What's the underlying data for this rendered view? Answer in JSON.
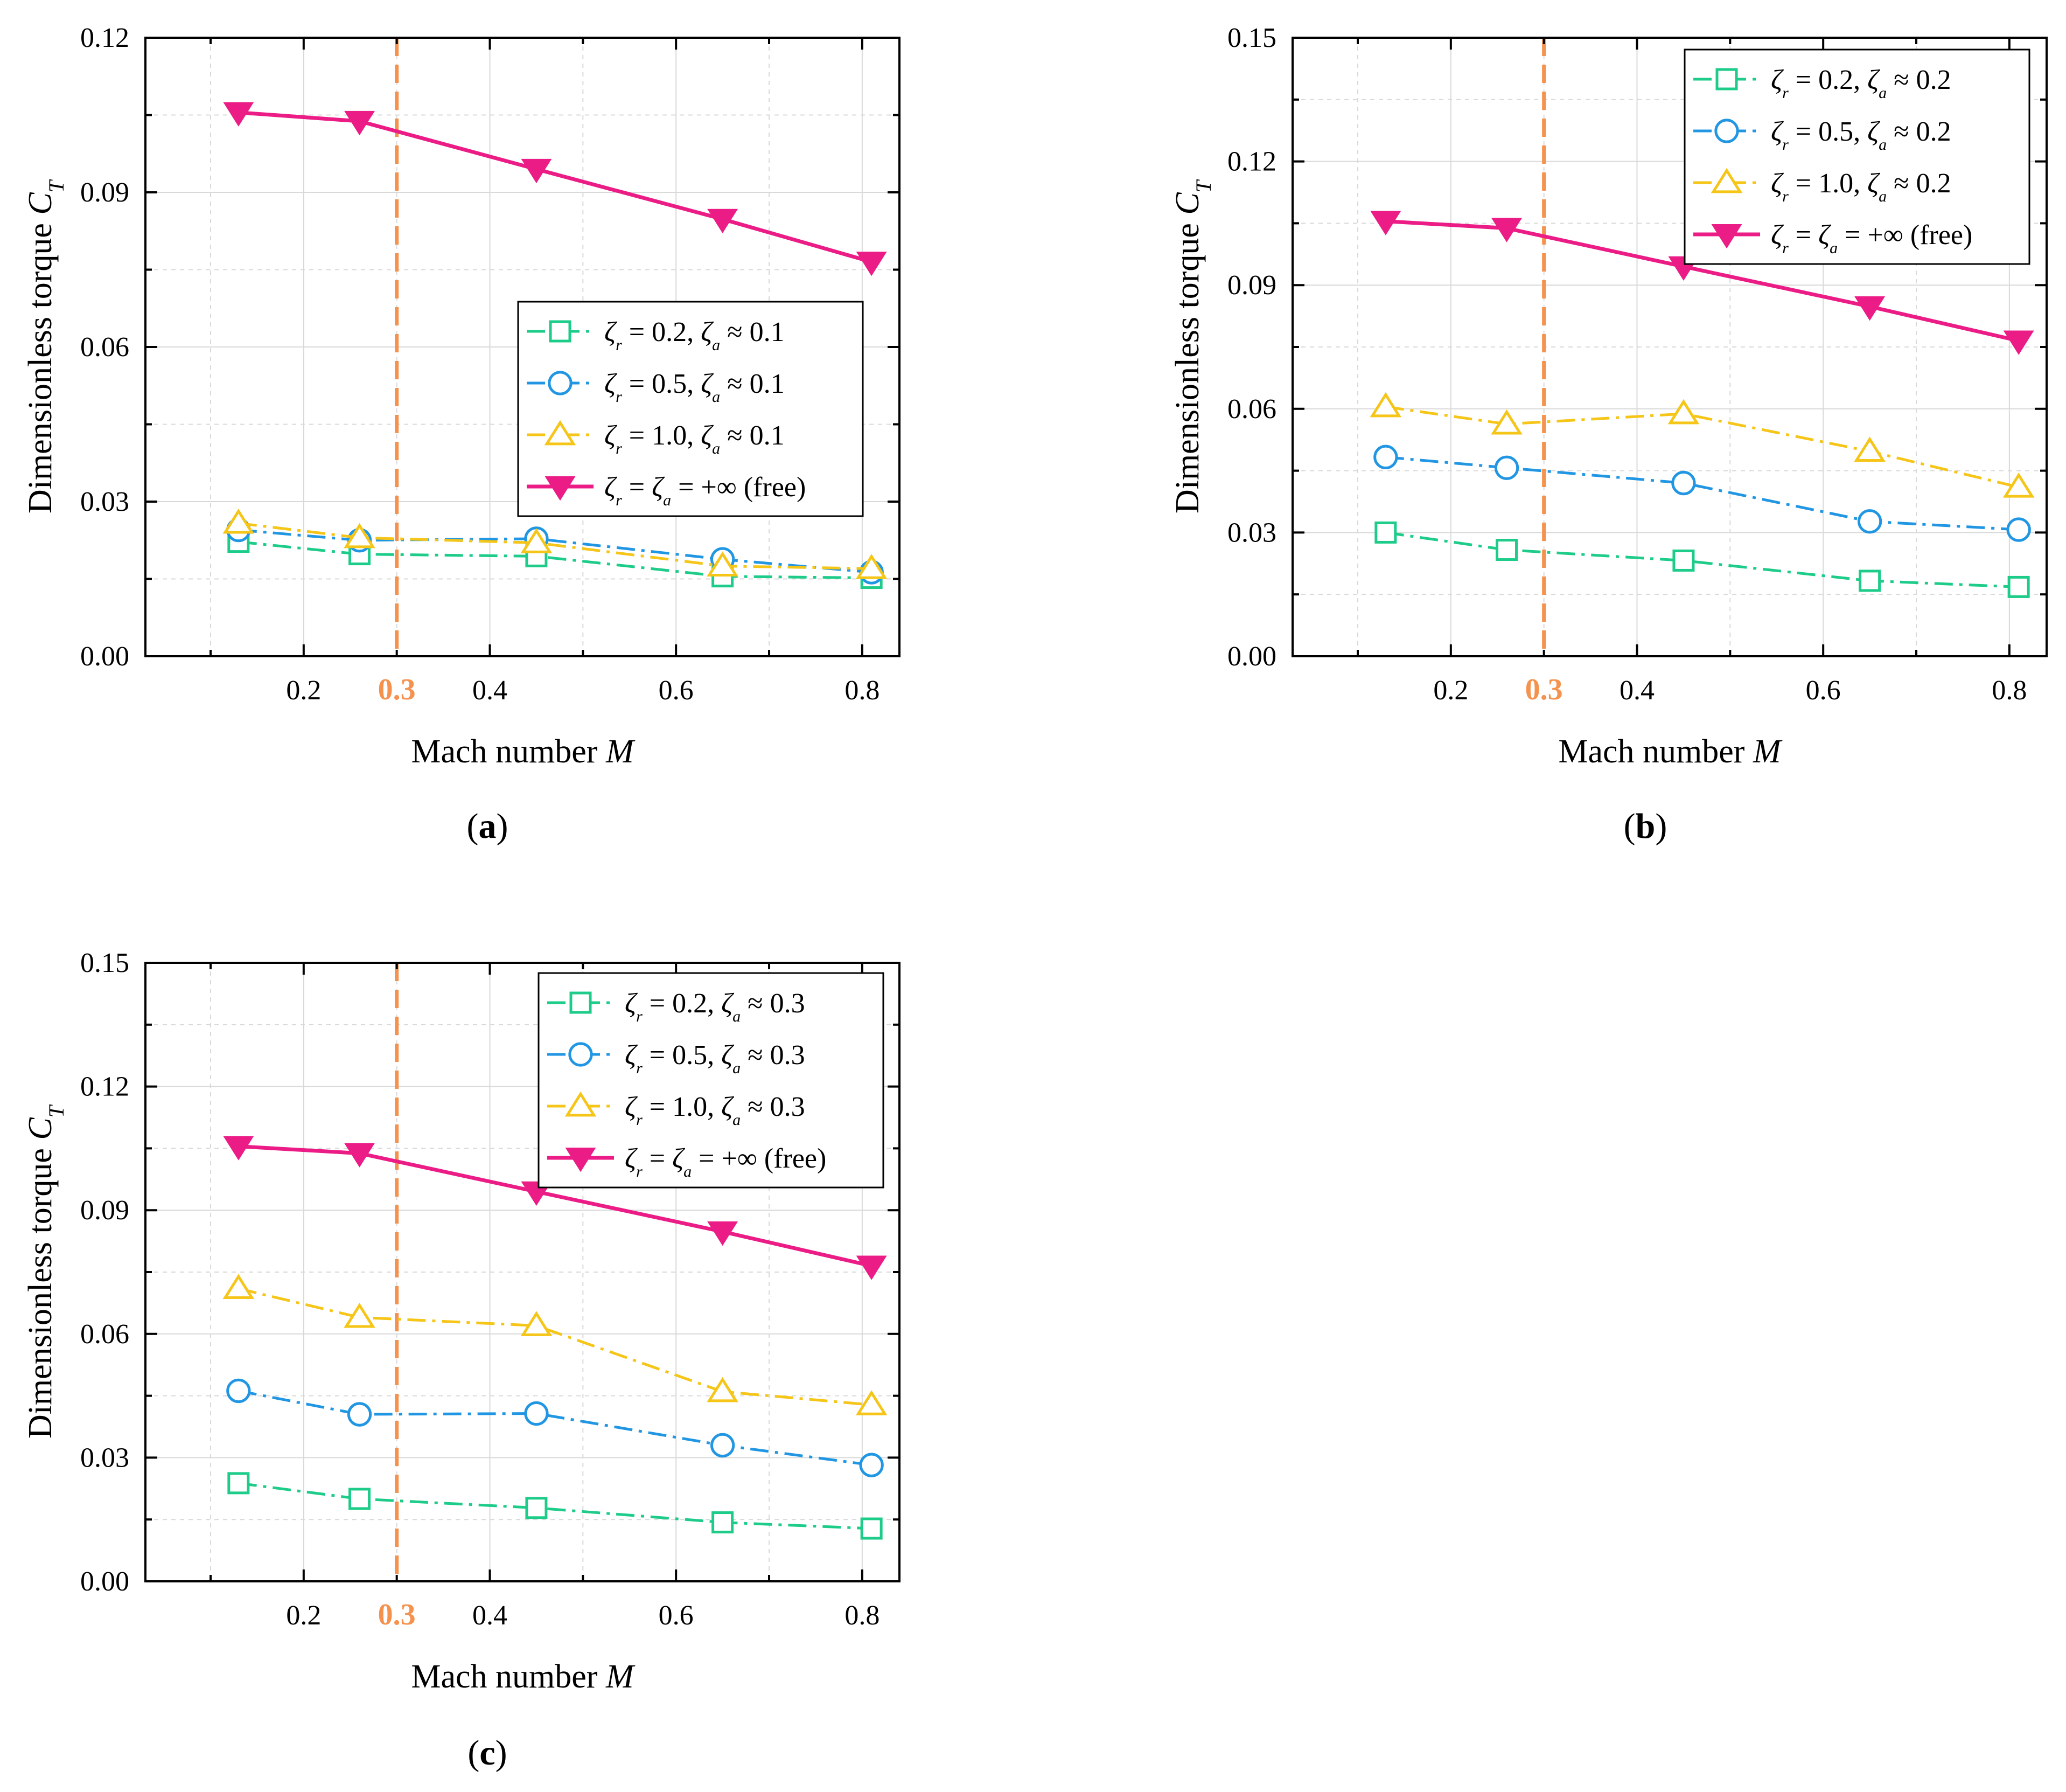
{
  "figure": {
    "ref_line_label": "0.3",
    "ref_line_color": "#F4924E",
    "series_colors": [
      "#1ECC8A",
      "#2196E3",
      "#F5C518",
      "#EC1C86"
    ],
    "series_markers": [
      "square",
      "circle",
      "triangle-up",
      "triangle-down-filled"
    ]
  },
  "chart_data": [
    {
      "type": "line",
      "panel_label": "(a)",
      "xlabel": "Mach number M",
      "ylabel": "Dimensionless torque C_T",
      "xlim": [
        0.03,
        0.84
      ],
      "ylim": [
        0,
        0.12
      ],
      "xticks": [
        0.2,
        0.4,
        0.6,
        0.8
      ],
      "xtick_labels": [
        "0.2",
        "0.4",
        "0.6",
        "0.8"
      ],
      "yticks": [
        0,
        0.03,
        0.06,
        0.09,
        0.12
      ],
      "ytick_labels": [
        "0.00",
        "0.03",
        "0.06",
        "0.09",
        "0.12"
      ],
      "grid": true,
      "ref_line_x": 0.3,
      "legend_position": "center-right",
      "x": [
        0.13,
        0.26,
        0.45,
        0.65,
        0.81
      ],
      "series": [
        {
          "name": "ζr = 0.2, ζa ≈ 0.1",
          "values": [
            0.0222,
            0.0198,
            0.0194,
            0.0155,
            0.0152
          ]
        },
        {
          "name": "ζr = 0.5, ζa ≈ 0.1",
          "values": [
            0.0245,
            0.0225,
            0.0228,
            0.0188,
            0.0163
          ]
        },
        {
          "name": "ζr = 1.0, ζa ≈ 0.1",
          "values": [
            0.0258,
            0.023,
            0.022,
            0.0175,
            0.017
          ]
        },
        {
          "name": "ζr = ζa = +∞ (free)",
          "values": [
            0.1055,
            0.1038,
            0.0945,
            0.0848,
            0.0765
          ]
        }
      ]
    },
    {
      "type": "line",
      "panel_label": "(b)",
      "xlabel": "Mach number M",
      "ylabel": "Dimensionless torque C_T",
      "xlim": [
        0.03,
        0.84
      ],
      "ylim": [
        0,
        0.15
      ],
      "xticks": [
        0.2,
        0.4,
        0.6,
        0.8
      ],
      "xtick_labels": [
        "0.2",
        "0.4",
        "0.6",
        "0.8"
      ],
      "yticks": [
        0,
        0.03,
        0.06,
        0.09,
        0.12,
        0.15
      ],
      "ytick_labels": [
        "0.00",
        "0.03",
        "0.06",
        "0.09",
        "0.12",
        "0.15"
      ],
      "grid": true,
      "ref_line_x": 0.3,
      "legend_position": "top-right",
      "x": [
        0.13,
        0.26,
        0.45,
        0.65,
        0.81
      ],
      "series": [
        {
          "name": "ζr = 0.2, ζa ≈ 0.2",
          "values": [
            0.03,
            0.0258,
            0.0232,
            0.0183,
            0.0168
          ]
        },
        {
          "name": "ζr = 0.5, ζa ≈ 0.2",
          "values": [
            0.0483,
            0.0457,
            0.042,
            0.0327,
            0.0307
          ]
        },
        {
          "name": "ζr = 1.0, ζa ≈ 0.2",
          "values": [
            0.0605,
            0.0563,
            0.0588,
            0.0497,
            0.041
          ]
        },
        {
          "name": "ζr = ζa = +∞ (free)",
          "values": [
            0.1055,
            0.1038,
            0.0945,
            0.0848,
            0.0765
          ]
        }
      ]
    },
    {
      "type": "line",
      "panel_label": "(c)",
      "xlabel": "Mach number M",
      "ylabel": "Dimensionless torque C_T",
      "xlim": [
        0.03,
        0.84
      ],
      "ylim": [
        0,
        0.15
      ],
      "xticks": [
        0.2,
        0.4,
        0.6,
        0.8
      ],
      "xtick_labels": [
        "0.2",
        "0.4",
        "0.6",
        "0.8"
      ],
      "yticks": [
        0,
        0.03,
        0.06,
        0.09,
        0.12,
        0.15
      ],
      "ytick_labels": [
        "0.00",
        "0.03",
        "0.06",
        "0.09",
        "0.12",
        "0.15"
      ],
      "grid": true,
      "ref_line_x": 0.3,
      "legend_position": "top-right",
      "x": [
        0.13,
        0.26,
        0.45,
        0.65,
        0.81
      ],
      "series": [
        {
          "name": "ζr = 0.2, ζa ≈ 0.3",
          "values": [
            0.0238,
            0.02,
            0.0178,
            0.0143,
            0.0128
          ]
        },
        {
          "name": "ζr = 0.5, ζa ≈ 0.3",
          "values": [
            0.0462,
            0.0405,
            0.0407,
            0.033,
            0.0282
          ]
        },
        {
          "name": "ζr = 1.0, ζa ≈ 0.3",
          "values": [
            0.071,
            0.064,
            0.062,
            0.046,
            0.0428
          ]
        },
        {
          "name": "ζr = ζa = +∞ (free)",
          "values": [
            0.1055,
            0.1038,
            0.0945,
            0.0848,
            0.0765
          ]
        }
      ]
    }
  ]
}
